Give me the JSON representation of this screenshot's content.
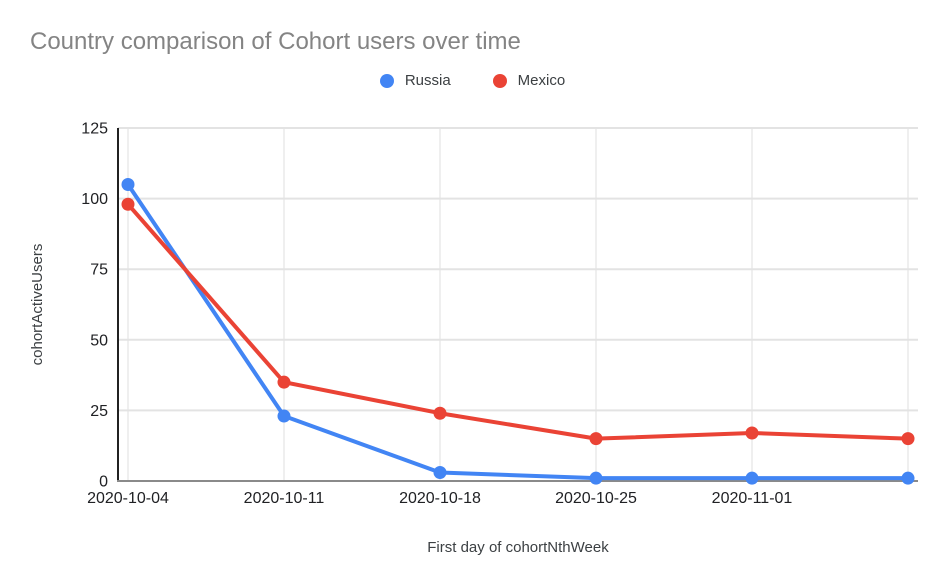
{
  "chart_data": {
    "type": "line",
    "title": "Country comparison of Cohort users over time",
    "xlabel": "First day of cohortNthWeek",
    "ylabel": "cohortActiveUsers",
    "categories": [
      "2020-10-04",
      "2020-10-11",
      "2020-10-18",
      "2020-10-25",
      "2020-11-01",
      ""
    ],
    "series": [
      {
        "name": "Russia",
        "color": "#4285F4",
        "values": [
          105,
          23,
          3,
          1,
          1,
          1
        ]
      },
      {
        "name": "Mexico",
        "color": "#EA4335",
        "values": [
          98,
          35,
          24,
          15,
          17,
          15
        ]
      }
    ],
    "ylim": [
      0,
      125
    ],
    "yticks": [
      0,
      25,
      50,
      75,
      100,
      125
    ],
    "grid": true,
    "legend_position": "top",
    "axis_colors": {
      "y_axis_line": "#212121",
      "x_axis_line": "#8a8a8a",
      "h_gridline": "#e3e3e3",
      "v_gridline": "#efefef",
      "tick_label": "#202124",
      "axis_title": "#3c4043",
      "title": "#848484"
    }
  }
}
